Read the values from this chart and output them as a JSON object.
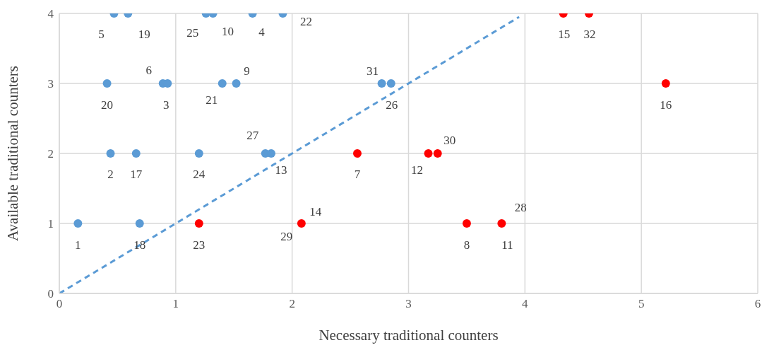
{
  "chart_data": {
    "type": "scatter",
    "xlabel": "Necessary traditional counters",
    "ylabel": "Available traditional counters",
    "xlim": [
      0,
      6
    ],
    "xticks": [
      0,
      1,
      2,
      3,
      4,
      5,
      6
    ],
    "ylim": [
      0,
      4
    ],
    "yticks": [
      0,
      1,
      2,
      3,
      4
    ],
    "grid": true,
    "marker": "circle",
    "series": [
      {
        "color": "#5b9bd5",
        "x": [
          0.16,
          0.69,
          0.44,
          0.66,
          1.2,
          1.77,
          1.82,
          0.41,
          0.89,
          0.93,
          1.4,
          1.52,
          2.77,
          2.85,
          0.47,
          0.59,
          1.26,
          1.32,
          1.66,
          1.92
        ],
        "values": [
          1,
          1,
          2,
          2,
          2,
          2,
          2,
          3,
          3,
          3,
          3,
          3,
          3,
          3,
          4,
          4,
          4,
          4,
          4,
          4
        ]
      },
      {
        "color": "#ff0000",
        "x": [
          1.2,
          2.08,
          3.5,
          3.8,
          2.56,
          3.17,
          3.25,
          5.21,
          4.33,
          4.55
        ],
        "values": [
          1,
          1,
          1,
          1,
          2,
          2,
          2,
          3,
          4,
          4
        ]
      },
      {
        "type": "line",
        "color": "#5b9bd5",
        "line_style": "dashed",
        "marker": "none",
        "x": [
          0,
          3.95
        ],
        "values": [
          0,
          3.95
        ]
      }
    ],
    "annotations": [
      {
        "text": "1",
        "x": 0.16,
        "y": 1
      },
      {
        "text": "18",
        "x": 0.69,
        "y": 1
      },
      {
        "text": "23",
        "x": 1.2,
        "y": 1
      },
      {
        "text": "29",
        "x": 2.08,
        "y": 1
      },
      {
        "text": "14",
        "x": 2.08,
        "y": 1
      },
      {
        "text": "8",
        "x": 3.5,
        "y": 1
      },
      {
        "text": "11",
        "x": 3.8,
        "y": 1
      },
      {
        "text": "28",
        "x": 3.8,
        "y": 1
      },
      {
        "text": "2",
        "x": 0.44,
        "y": 2
      },
      {
        "text": "17",
        "x": 0.66,
        "y": 2
      },
      {
        "text": "24",
        "x": 1.2,
        "y": 2
      },
      {
        "text": "27",
        "x": 1.77,
        "y": 2
      },
      {
        "text": "13",
        "x": 1.82,
        "y": 2
      },
      {
        "text": "7",
        "x": 2.56,
        "y": 2
      },
      {
        "text": "12",
        "x": 3.17,
        "y": 2
      },
      {
        "text": "30",
        "x": 3.25,
        "y": 2
      },
      {
        "text": "20",
        "x": 0.41,
        "y": 3
      },
      {
        "text": "6",
        "x": 0.89,
        "y": 3
      },
      {
        "text": "3",
        "x": 0.93,
        "y": 3
      },
      {
        "text": "21",
        "x": 1.4,
        "y": 3
      },
      {
        "text": "9",
        "x": 1.52,
        "y": 3
      },
      {
        "text": "31",
        "x": 2.77,
        "y": 3
      },
      {
        "text": "26",
        "x": 2.85,
        "y": 3
      },
      {
        "text": "16",
        "x": 5.21,
        "y": 3
      },
      {
        "text": "5",
        "x": 0.47,
        "y": 4
      },
      {
        "text": "19",
        "x": 0.59,
        "y": 4
      },
      {
        "text": "25",
        "x": 1.26,
        "y": 4
      },
      {
        "text": "10",
        "x": 1.32,
        "y": 4
      },
      {
        "text": "4",
        "x": 1.66,
        "y": 4
      },
      {
        "text": "22",
        "x": 1.92,
        "y": 4
      },
      {
        "text": "15",
        "x": 4.33,
        "y": 4
      },
      {
        "text": "32",
        "x": 4.55,
        "y": 4
      }
    ]
  }
}
